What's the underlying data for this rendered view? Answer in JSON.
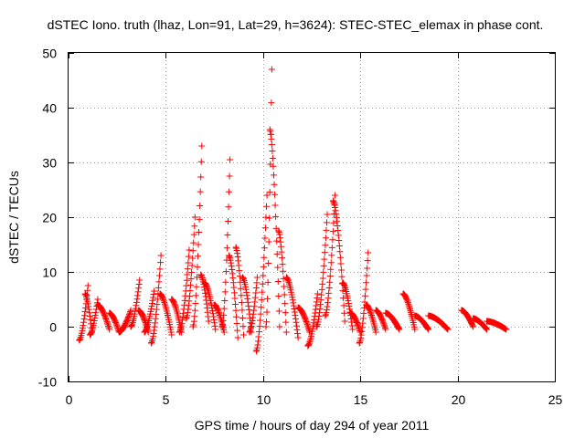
{
  "chart_data": {
    "type": "scatter",
    "title": "dSTEC Iono. truth (lhaz, Lon=91, Lat=29, h=3624): STEC-STEC_elemax in phase cont.",
    "xlabel": "GPS time / hours of day 294 of year 2011",
    "ylabel": "dSTEC  / TECUs",
    "xlim": [
      0,
      25
    ],
    "ylim": [
      -10,
      50
    ],
    "xticks": [
      0,
      5,
      10,
      15,
      20,
      25
    ],
    "yticks": [
      -10,
      0,
      10,
      20,
      30,
      40,
      50
    ],
    "grid": true,
    "marker": "+",
    "colors": {
      "series": "#ff0000",
      "grid": "#a0a0a0",
      "axis": "#000000"
    },
    "arcs": [
      {
        "t0": 0.55,
        "t1": 1.0,
        "vs": -2.5,
        "ve": 7.5
      },
      {
        "t0": 0.85,
        "t1": 1.2,
        "vs": 6.0,
        "ve": -1.0
      },
      {
        "t0": 1.1,
        "t1": 1.5,
        "vs": -1.5,
        "ve": 5.0
      },
      {
        "t0": 1.5,
        "t1": 2.1,
        "vs": 4.0,
        "ve": -0.5
      },
      {
        "t0": 2.1,
        "t1": 2.6,
        "vs": 2.5,
        "ve": -1.0
      },
      {
        "t0": 2.6,
        "t1": 3.2,
        "vs": -1.0,
        "ve": 3.0
      },
      {
        "t0": 3.2,
        "t1": 3.65,
        "vs": 0.0,
        "ve": 8.5
      },
      {
        "t0": 3.6,
        "t1": 4.1,
        "vs": 3.0,
        "ve": -1.0
      },
      {
        "t0": 3.9,
        "t1": 4.4,
        "vs": -1.0,
        "ve": 6.5
      },
      {
        "t0": 4.25,
        "t1": 4.75,
        "vs": -3.0,
        "ve": 13.0
      },
      {
        "t0": 4.7,
        "t1": 5.3,
        "vs": 6.0,
        "ve": -1.5
      },
      {
        "t0": 5.3,
        "t1": 5.8,
        "vs": 5.0,
        "ve": -1.0
      },
      {
        "t0": 5.7,
        "t1": 6.2,
        "vs": -1.0,
        "ve": 14.0
      },
      {
        "t0": 6.05,
        "t1": 6.5,
        "vs": 1.5,
        "ve": 20.0
      },
      {
        "t0": 6.4,
        "t1": 6.85,
        "vs": 0.0,
        "ve": 33.0
      },
      {
        "t0": 6.8,
        "t1": 7.2,
        "vs": 9.5,
        "ve": 1.0
      },
      {
        "t0": 7.0,
        "t1": 7.55,
        "vs": 8.0,
        "ve": -0.5
      },
      {
        "t0": 7.5,
        "t1": 8.0,
        "vs": 4.0,
        "ve": -1.0
      },
      {
        "t0": 7.9,
        "t1": 8.3,
        "vs": 0.0,
        "ve": 30.5
      },
      {
        "t0": 8.25,
        "t1": 8.7,
        "vs": 13.0,
        "ve": -2.0
      },
      {
        "t0": 8.6,
        "t1": 9.0,
        "vs": 14.5,
        "ve": -1.5
      },
      {
        "t0": 8.95,
        "t1": 9.4,
        "vs": 9.0,
        "ve": -1.0
      },
      {
        "t0": 9.3,
        "t1": 9.7,
        "vs": -1.0,
        "ve": 9.0
      },
      {
        "t0": 9.65,
        "t1": 10.2,
        "vs": -4.5,
        "ve": 24.0
      },
      {
        "t0": 10.15,
        "t1": 10.45,
        "vs": 0.0,
        "ve": 47.0
      },
      {
        "t0": 10.35,
        "t1": 10.85,
        "vs": 36.0,
        "ve": 0.0
      },
      {
        "t0": 10.8,
        "t1": 11.2,
        "vs": 17.5,
        "ve": -1.0
      },
      {
        "t0": 11.2,
        "t1": 11.8,
        "vs": 9.0,
        "ve": -2.0
      },
      {
        "t0": 11.8,
        "t1": 12.4,
        "vs": 3.5,
        "ve": -1.0
      },
      {
        "t0": 12.3,
        "t1": 12.8,
        "vs": -3.5,
        "ve": 6.0
      },
      {
        "t0": 12.75,
        "t1": 13.3,
        "vs": 0.0,
        "ve": 20.5
      },
      {
        "t0": 13.2,
        "t1": 13.7,
        "vs": 2.0,
        "ve": 24.0
      },
      {
        "t0": 13.6,
        "t1": 14.2,
        "vs": 23.0,
        "ve": 1.0
      },
      {
        "t0": 14.1,
        "t1": 14.6,
        "vs": 8.0,
        "ve": -0.5
      },
      {
        "t0": 14.5,
        "t1": 15.0,
        "vs": 2.5,
        "ve": -1.0
      },
      {
        "t0": 14.95,
        "t1": 15.4,
        "vs": -3.0,
        "ve": 13.5
      },
      {
        "t0": 15.3,
        "t1": 15.8,
        "vs": 4.0,
        "ve": -1.0
      },
      {
        "t0": 15.8,
        "t1": 16.3,
        "vs": 3.0,
        "ve": -0.5
      },
      {
        "t0": 16.3,
        "t1": 17.0,
        "vs": 2.5,
        "ve": -0.5
      },
      {
        "t0": 17.2,
        "t1": 17.8,
        "vs": 6.0,
        "ve": -0.5
      },
      {
        "t0": 17.8,
        "t1": 18.5,
        "vs": 2.0,
        "ve": -0.5
      },
      {
        "t0": 18.5,
        "t1": 19.5,
        "vs": 2.0,
        "ve": -0.5
      },
      {
        "t0": 20.2,
        "t1": 20.8,
        "vs": 3.0,
        "ve": 0.0
      },
      {
        "t0": 20.8,
        "t1": 21.5,
        "vs": 1.5,
        "ve": -0.5
      },
      {
        "t0": 21.5,
        "t1": 22.5,
        "vs": 1.0,
        "ve": -0.5
      }
    ]
  }
}
